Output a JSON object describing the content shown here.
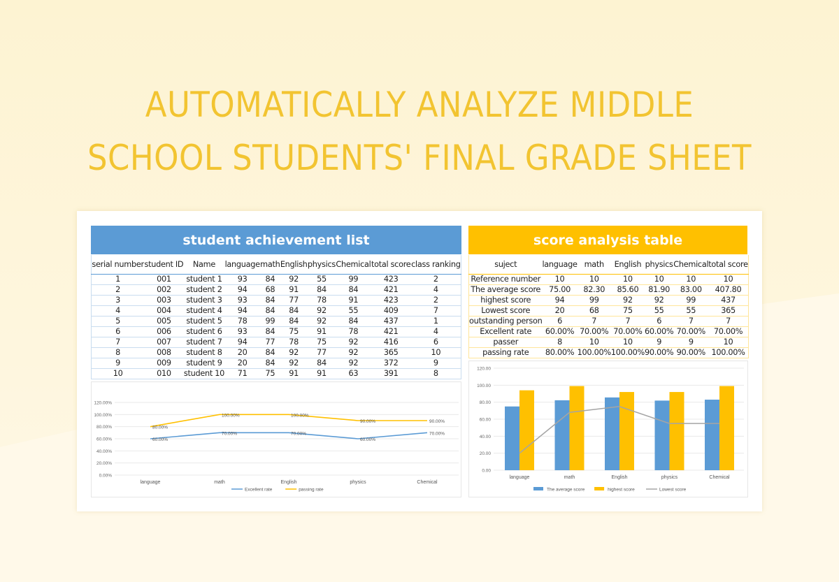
{
  "title_line1": "AUTOMATICALLY ANALYZE MIDDLE",
  "title_line2": "SCHOOL STUDENTS' FINAL GRADE SHEET",
  "colors": {
    "blue": "#5b9bd5",
    "orange": "#ffc000",
    "gray": "#a5a5a5",
    "title": "#f2c431"
  },
  "achievement": {
    "title": "student achievement list",
    "columns": [
      "serial number",
      "student ID",
      "Name",
      "language",
      "math",
      "English",
      "physics",
      "Chemical",
      "total score",
      "class ranking"
    ],
    "rows": [
      [
        "1",
        "001",
        "student 1",
        "93",
        "84",
        "92",
        "55",
        "99",
        "423",
        "2"
      ],
      [
        "2",
        "002",
        "student 2",
        "94",
        "68",
        "91",
        "84",
        "84",
        "421",
        "4"
      ],
      [
        "3",
        "003",
        "student 3",
        "93",
        "84",
        "77",
        "78",
        "91",
        "423",
        "2"
      ],
      [
        "4",
        "004",
        "student 4",
        "94",
        "84",
        "84",
        "92",
        "55",
        "409",
        "7"
      ],
      [
        "5",
        "005",
        "student 5",
        "78",
        "99",
        "84",
        "92",
        "84",
        "437",
        "1"
      ],
      [
        "6",
        "006",
        "student 6",
        "93",
        "84",
        "75",
        "91",
        "78",
        "421",
        "4"
      ],
      [
        "7",
        "007",
        "student 7",
        "94",
        "77",
        "78",
        "75",
        "92",
        "416",
        "6"
      ],
      [
        "8",
        "008",
        "student 8",
        "20",
        "84",
        "92",
        "77",
        "92",
        "365",
        "10"
      ],
      [
        "9",
        "009",
        "student 9",
        "20",
        "84",
        "92",
        "84",
        "92",
        "372",
        "9"
      ],
      [
        "10",
        "010",
        "student 10",
        "71",
        "75",
        "91",
        "91",
        "63",
        "391",
        "8"
      ]
    ]
  },
  "analysis": {
    "title": "score analysis table",
    "columns": [
      "suject",
      "language",
      "math",
      "English",
      "physics",
      "Chemical",
      "total score"
    ],
    "rows": [
      [
        "Reference number",
        "10",
        "10",
        "10",
        "10",
        "10",
        "10"
      ],
      [
        "The average score",
        "75.00",
        "82.30",
        "85.60",
        "81.90",
        "83.00",
        "407.80"
      ],
      [
        "highest score",
        "94",
        "99",
        "92",
        "92",
        "99",
        "437"
      ],
      [
        "Lowest score",
        "20",
        "68",
        "75",
        "55",
        "55",
        "365"
      ],
      [
        "outstanding person",
        "6",
        "7",
        "7",
        "6",
        "7",
        "7"
      ],
      [
        "Excellent rate",
        "60.00%",
        "70.00%",
        "70.00%",
        "60.00%",
        "70.00%",
        "70.00%"
      ],
      [
        "passer",
        "8",
        "10",
        "10",
        "9",
        "9",
        "10"
      ],
      [
        "passing rate",
        "80.00%",
        "100.00%",
        "100.00%",
        "90.00%",
        "90.00%",
        "100.00%"
      ]
    ]
  },
  "chart_data": [
    {
      "type": "line",
      "categories": [
        "language",
        "math",
        "English",
        "physics",
        "Chemical"
      ],
      "ylim": [
        0,
        120
      ],
      "yticks": [
        "0.00%",
        "20.00%",
        "40.00%",
        "60.00%",
        "80.00%",
        "100.00%",
        "120.00%"
      ],
      "grid": true,
      "legend": "bottom",
      "series": [
        {
          "name": "Excellent rate",
          "values": [
            60,
            70,
            70,
            60,
            70
          ],
          "labels": [
            "60.00%",
            "70.00%",
            "70.00%",
            "60.00%",
            "70.00%"
          ],
          "color": "#5b9bd5"
        },
        {
          "name": "passing rate",
          "values": [
            80,
            100,
            100,
            90,
            90
          ],
          "labels": [
            "80.00%",
            "100.00%",
            "100.00%",
            "90.00%",
            "90.00%"
          ],
          "color": "#ffc000"
        }
      ]
    },
    {
      "type": "bar",
      "categories": [
        "language",
        "math",
        "English",
        "physics",
        "Chemical"
      ],
      "ylim": [
        0,
        120
      ],
      "yticks": [
        "0.00",
        "20.00",
        "40.00",
        "60.00",
        "80.00",
        "100.00",
        "120.00"
      ],
      "grid": true,
      "legend": "bottom",
      "series": [
        {
          "name": "The average score",
          "kind": "bar",
          "values": [
            75,
            82.3,
            85.6,
            81.9,
            83
          ],
          "color": "#5b9bd5"
        },
        {
          "name": "highest score",
          "kind": "bar",
          "values": [
            94,
            99,
            92,
            92,
            99
          ],
          "color": "#ffc000"
        },
        {
          "name": "Lowest score",
          "kind": "line",
          "values": [
            20,
            68,
            75,
            55,
            55
          ],
          "color": "#a5a5a5"
        }
      ]
    }
  ]
}
